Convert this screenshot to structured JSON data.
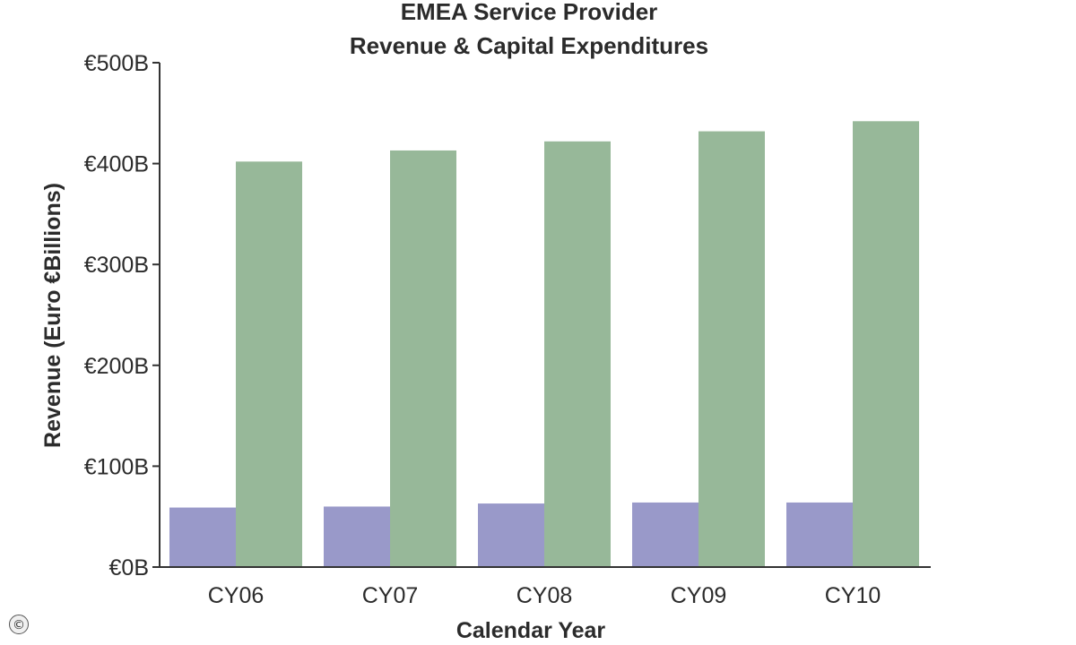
{
  "chart_data": {
    "type": "bar",
    "title": [
      "EMEA Service Provider",
      "Revenue & Capital Expenditures"
    ],
    "xlabel": "Calendar Year",
    "ylabel": "Revenue (Euro €Billions)",
    "categories": [
      "CY06",
      "CY07",
      "CY08",
      "CY09",
      "CY10"
    ],
    "ylim": [
      0,
      500
    ],
    "yticks": [
      0,
      100,
      200,
      300,
      400,
      500
    ],
    "ytick_labels": [
      "€0B",
      "€100B",
      "€200B",
      "€300B",
      "€400B",
      "€500B"
    ],
    "grid": false,
    "legend": "none",
    "series": [
      {
        "values": [
          59,
          60,
          63,
          64,
          64
        ],
        "color": "#9999c9"
      },
      {
        "values": [
          402,
          413,
          422,
          432,
          442
        ],
        "color": "#97b899"
      }
    ]
  },
  "icons": {
    "copyright": "copyright-icon"
  },
  "copyright_symbol": "©"
}
